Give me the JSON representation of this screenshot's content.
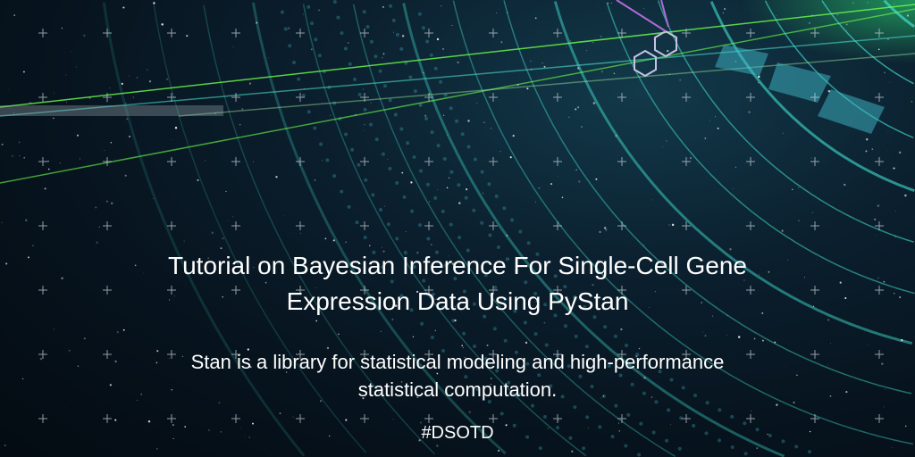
{
  "banner": {
    "title_line1": "Tutorial on Bayesian Inference For Single-Cell Gene",
    "title_line2": "Expression Data Using PyStan",
    "subtitle_line1": "Stan is a library for statistical modeling and high-performance",
    "subtitle_line2": "statistical computation.",
    "hashtag": "#DSOTD"
  },
  "colors": {
    "accent_teal": "#3fd6c8",
    "accent_green": "#7cff5a",
    "hexagon": "#c9c2e6"
  }
}
